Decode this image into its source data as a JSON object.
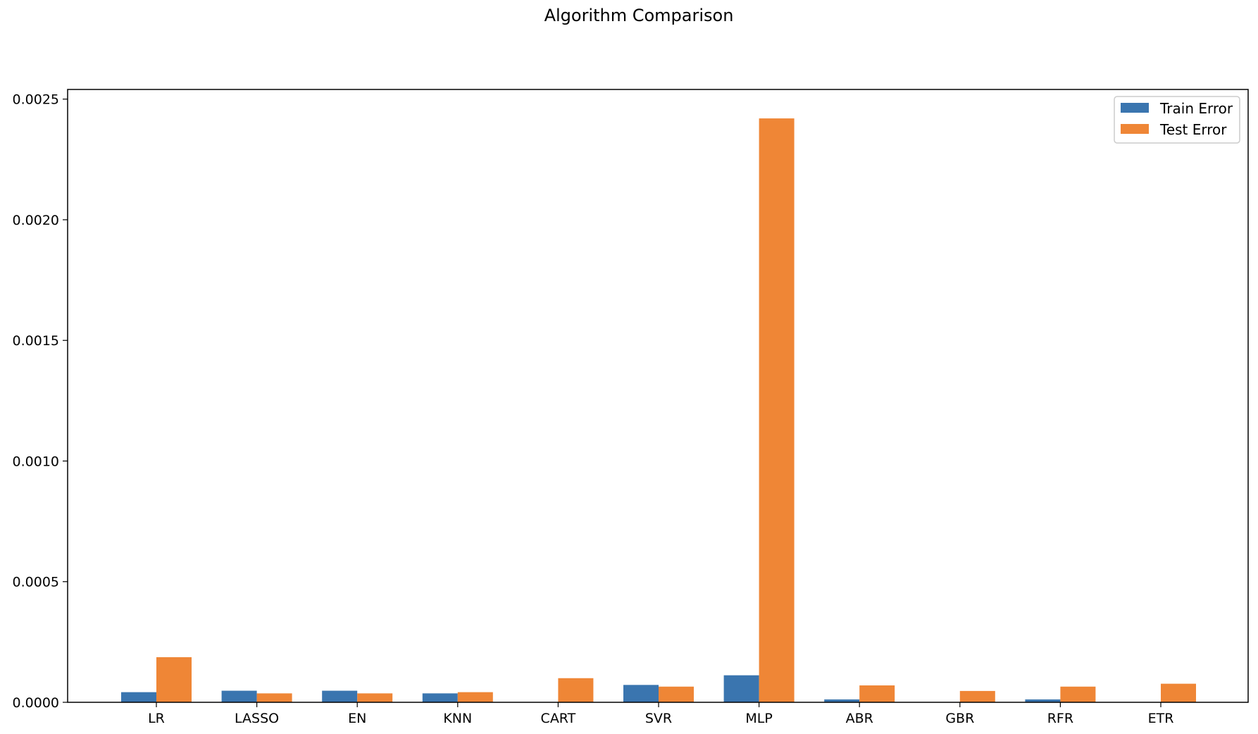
{
  "chart_data": {
    "type": "bar",
    "title": "Algorithm Comparison",
    "xlabel": "",
    "ylabel": "",
    "categories": [
      "LR",
      "LASSO",
      "EN",
      "KNN",
      "CART",
      "SVR",
      "MLP",
      "ABR",
      "GBR",
      "RFR",
      "ETR"
    ],
    "series": [
      {
        "name": "Train Error",
        "color": "#3a75af",
        "values": [
          4.2e-05,
          4.8e-05,
          4.8e-05,
          3.7e-05,
          0.0,
          7.2e-05,
          0.000112,
          1.2e-05,
          0.0,
          1.2e-05,
          0.0
        ]
      },
      {
        "name": "Test Error",
        "color": "#ef8636",
        "values": [
          0.000187,
          3.7e-05,
          3.7e-05,
          4.2e-05,
          0.0001,
          6.5e-05,
          0.00242,
          7e-05,
          4.7e-05,
          6.5e-05,
          7.7e-05
        ]
      }
    ],
    "ylim": [
      0,
      0.00254
    ],
    "yticks": [
      "0.0000",
      "0.0005",
      "0.0010",
      "0.0015",
      "0.0020",
      "0.0025"
    ],
    "ytick_values": [
      0,
      0.0005,
      0.001,
      0.0015,
      0.002,
      0.0025
    ],
    "grid": false,
    "legend_position": "top-right"
  }
}
